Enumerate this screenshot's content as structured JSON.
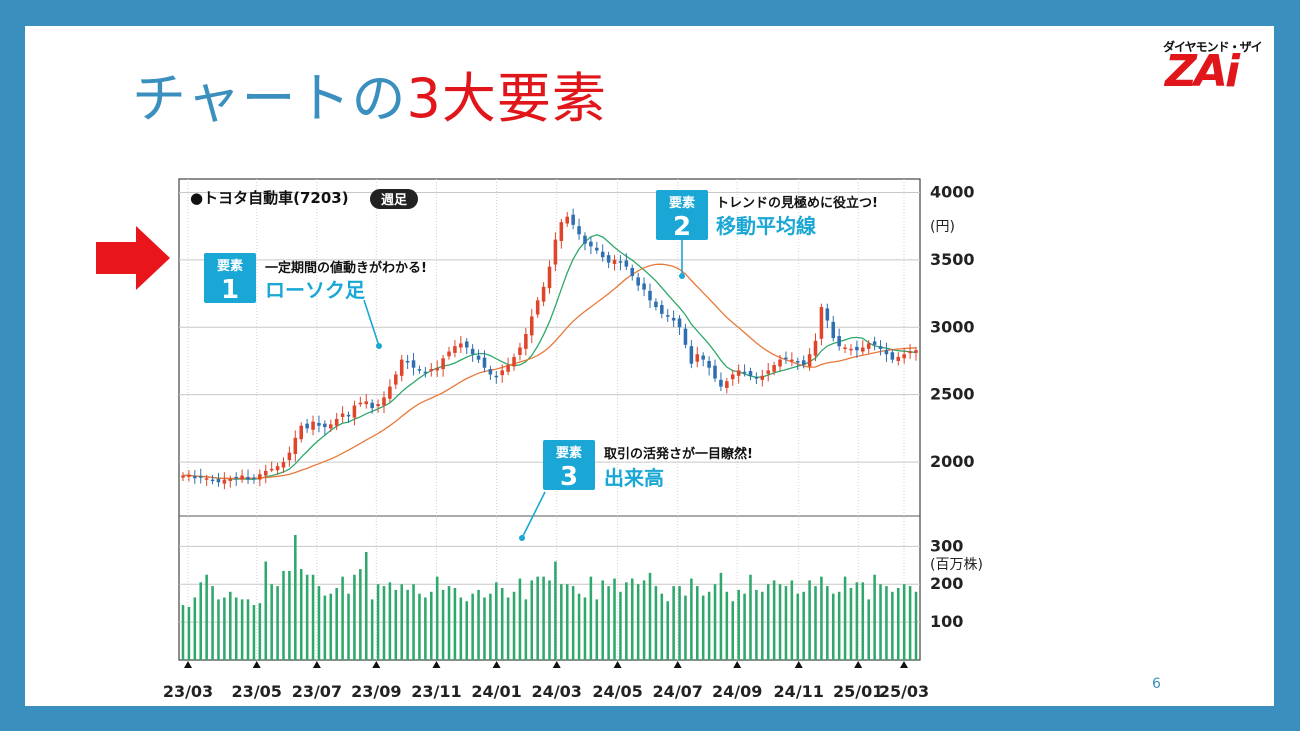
{
  "slide": {
    "title_part1": "チャートの",
    "title_part2": "3大要素",
    "page_number": "6",
    "logo_sub": "ダイヤモンド・ザイ",
    "logo_main": "ZAi",
    "colors": {
      "frame": "#3a8fbf",
      "title_blue": "#3a8fbf",
      "title_red": "#e0161b",
      "arrow": "#e8151b",
      "callout": "#1aa7d6"
    }
  },
  "chart_data": {
    "type": "candlestick",
    "title": "●トヨタ自動車(7203)",
    "badge": "週足",
    "price_axis": {
      "ticks": [
        2000,
        2500,
        3000,
        3500,
        4000
      ],
      "tick_labels": [
        "2000",
        "2500",
        "3000",
        "3500",
        "4000"
      ],
      "unit": "(円)",
      "ylim": [
        1600,
        4100
      ]
    },
    "volume_axis": {
      "ticks": [
        100,
        200,
        300
      ],
      "tick_labels": [
        "100",
        "200",
        "300"
      ],
      "unit": "(百万株)",
      "ylim": [
        0,
        380
      ]
    },
    "x_tick_labels": [
      "23/03",
      "23/05",
      "23/07",
      "23/09",
      "23/11",
      "24/01",
      "24/03",
      "24/05",
      "24/07",
      "24/09",
      "24/11",
      "25/01",
      "25/03"
    ],
    "series": [
      {
        "role": "candles",
        "up_color": "#e0452a",
        "down_color": "#2f6fb0",
        "closes": [
          1900,
          1905,
          1880,
          1890,
          1880,
          1860,
          1850,
          1870,
          1875,
          1880,
          1900,
          1870,
          1880,
          1910,
          1935,
          1950,
          1970,
          2000,
          2070,
          2180,
          2270,
          2250,
          2300,
          2270,
          2260,
          2280,
          2320,
          2360,
          2340,
          2420,
          2440,
          2450,
          2400,
          2430,
          2480,
          2560,
          2650,
          2760,
          2740,
          2700,
          2680,
          2660,
          2690,
          2700,
          2770,
          2820,
          2860,
          2880,
          2850,
          2800,
          2760,
          2700,
          2650,
          2630,
          2680,
          2720,
          2780,
          2850,
          2950,
          3080,
          3200,
          3300,
          3450,
          3650,
          3780,
          3820,
          3760,
          3690,
          3620,
          3600,
          3570,
          3520,
          3480,
          3500,
          3480,
          3450,
          3380,
          3310,
          3280,
          3200,
          3150,
          3100,
          3080,
          3050,
          3000,
          2870,
          2730,
          2800,
          2760,
          2700,
          2620,
          2560,
          2600,
          2650,
          2680,
          2660,
          2640,
          2620,
          2640,
          2680,
          2720,
          2760,
          2770,
          2760,
          2740,
          2720,
          2800,
          2900,
          3150,
          3050,
          2920,
          2860,
          2850,
          2840,
          2830,
          2850,
          2880,
          2870,
          2840,
          2800,
          2760,
          2780,
          2800,
          2820,
          2830
        ]
      },
      {
        "name": "",
        "role": "ma_short",
        "color": "#2ea86b",
        "note_points": [
          [
            0,
            1860
          ],
          [
            20,
            2200
          ],
          [
            40,
            2680
          ],
          [
            60,
            3100
          ],
          [
            72,
            3550
          ],
          [
            85,
            3150
          ],
          [
            95,
            2650
          ],
          [
            110,
            2830
          ],
          [
            124,
            2850
          ]
        ]
      },
      {
        "name": "",
        "role": "ma_long",
        "color": "#e8793a",
        "note_points": [
          [
            0,
            1860
          ],
          [
            20,
            2050
          ],
          [
            40,
            2450
          ],
          [
            60,
            2900
          ],
          [
            72,
            3250
          ],
          [
            85,
            3350
          ],
          [
            100,
            2980
          ],
          [
            110,
            2830
          ],
          [
            124,
            2850
          ]
        ]
      },
      {
        "role": "volume",
        "color": "#2ea86b",
        "values": [
          145,
          140,
          165,
          205,
          225,
          195,
          160,
          165,
          180,
          165,
          160,
          160,
          145,
          150,
          260,
          200,
          195,
          235,
          235,
          330,
          240,
          225,
          225,
          195,
          170,
          175,
          190,
          220,
          175,
          225,
          240,
          285,
          160,
          200,
          195,
          205,
          185,
          200,
          185,
          200,
          175,
          165,
          180,
          220,
          185,
          195,
          190,
          165,
          155,
          175,
          185,
          165,
          175,
          205,
          190,
          165,
          180,
          215,
          160,
          210,
          220,
          220,
          210,
          260,
          200,
          200,
          195,
          175,
          165,
          220,
          160,
          210,
          195,
          215,
          180,
          205,
          215,
          200,
          210,
          230,
          195,
          175,
          155,
          195,
          195,
          170,
          215,
          195,
          170,
          180,
          200,
          230,
          180,
          155,
          185,
          175,
          225,
          185,
          180,
          200,
          210,
          200,
          195,
          210,
          175,
          180,
          210,
          195,
          220,
          195,
          175,
          180,
          220,
          190,
          205,
          205,
          160,
          225,
          200,
          195,
          180,
          190,
          200,
          195,
          180
        ]
      }
    ],
    "callouts": [
      {
        "badge_top": "要素",
        "number": "1",
        "caption": "一定期間の値動きがわかる!",
        "label": "ローソク足"
      },
      {
        "badge_top": "要素",
        "number": "2",
        "caption": "トレンドの見極めに役立つ!",
        "label": "移動平均線"
      },
      {
        "badge_top": "要素",
        "number": "3",
        "caption": "取引の活発さが一目瞭然!",
        "label": "出来高"
      }
    ]
  }
}
